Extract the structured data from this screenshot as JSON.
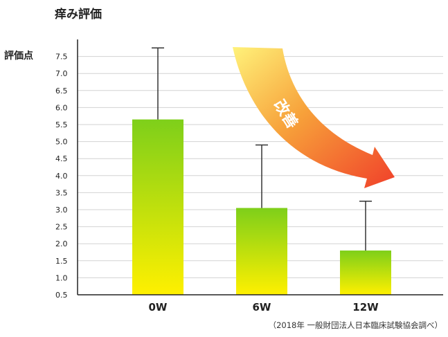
{
  "chart_data": {
    "type": "bar",
    "title": "痒み評価",
    "ylabel": "評価点",
    "xlabel": "",
    "categories": [
      "0W",
      "6W",
      "12W"
    ],
    "values": [
      5.65,
      3.05,
      1.8
    ],
    "error_upper": [
      7.75,
      4.9,
      3.25
    ],
    "ylim": [
      0.5,
      8.0
    ],
    "yticks": [
      "0.5",
      "1.0",
      "1.5",
      "2.0",
      "2.5",
      "3.0",
      "3.5",
      "4.0",
      "4.5",
      "5.0",
      "5.5",
      "6.0",
      "6.5",
      "7.0",
      "7.5"
    ],
    "grid": true,
    "annotation": "改善",
    "source": "（2018年 一般財団法人日本臨床試験協会調べ）",
    "colors": {
      "bar_top": "#7ecf1a",
      "bar_bottom": "#fff000",
      "arrow_start": "#fff27a",
      "arrow_mid": "#f7a13a",
      "arrow_end": "#f0402a",
      "grid": "#d2d2d2",
      "axis": "#222222"
    }
  }
}
